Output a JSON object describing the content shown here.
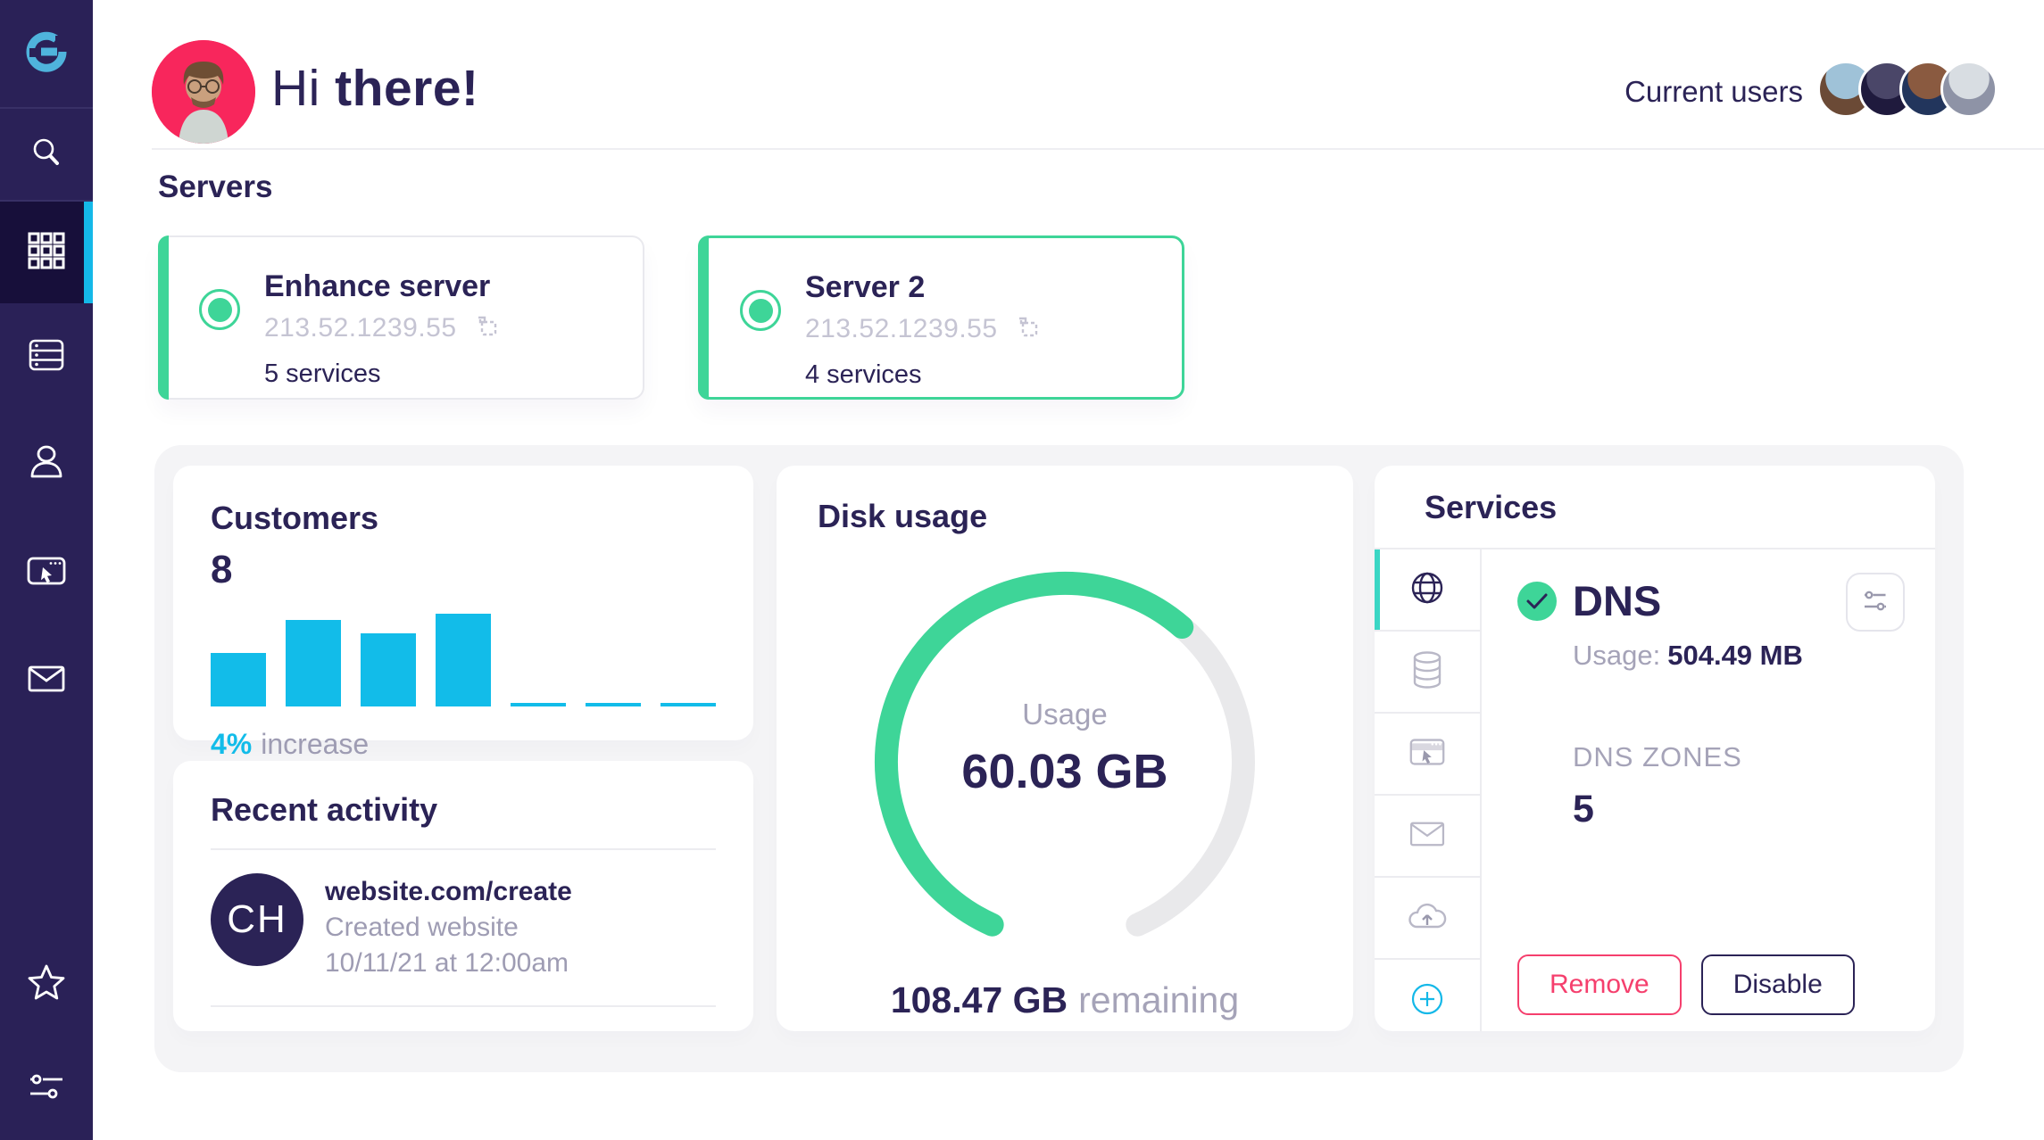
{
  "app": {
    "name": "Enhance hosting admin dashboard"
  },
  "colors": {
    "navy": "#2B2356",
    "sidebar": "#2A2157",
    "sidebar_active": "#170F3A",
    "cyan": "#12BCE9",
    "green": "#3ED598",
    "teal_tab_bar": "#3AD6C4",
    "pink": "#F53F6D",
    "avatar_crimson": "#F8265C",
    "gray_text": "#9E9CB3",
    "gray_light": "#C5C4D3",
    "panel_gray": "#F4F4F6"
  },
  "sidebar": {
    "logo_icon": "enhance-logo",
    "items": [
      {
        "icon": "search-icon",
        "active": false
      },
      {
        "icon": "app-grid-icon",
        "active": true
      },
      {
        "icon": "server-stack-icon",
        "active": false
      },
      {
        "icon": "person-icon",
        "active": false
      },
      {
        "icon": "browser-cursor-icon",
        "active": false
      },
      {
        "icon": "envelope-icon",
        "active": false
      }
    ],
    "footer_items": [
      {
        "icon": "star-icon"
      },
      {
        "icon": "sliders-icon"
      }
    ]
  },
  "header": {
    "greeting_prefix": "Hi ",
    "greeting_emphasis": "there!",
    "current_users_label": "Current users",
    "user_avatar_colors": [
      [
        "#9fc2d8",
        "#6b4a36"
      ],
      [
        "#4a4668",
        "#1f1a3d"
      ],
      [
        "#8a5a40",
        "#22355c"
      ],
      [
        "#d8dde2",
        "#8e93a6"
      ]
    ]
  },
  "servers": {
    "heading": "Servers",
    "cards": [
      {
        "name": "Enhance server",
        "ip": "213.52.1239.55",
        "services": "5 services",
        "status": "online"
      },
      {
        "name": "Server 2",
        "ip": "213.52.1239.55",
        "services": "4 services",
        "status": "online"
      }
    ]
  },
  "customers": {
    "title": "Customers",
    "count": "8",
    "delta_value": "4%",
    "delta_label": "increase"
  },
  "recent_activity": {
    "title": "Recent activity",
    "entry": {
      "initials": "CH",
      "url": "website.com/create",
      "action": "Created website",
      "timestamp": "10/11/21 at 12:00am"
    }
  },
  "disk": {
    "title": "Disk usage",
    "center_label": "Usage",
    "center_value": "60.03 GB",
    "remaining_value": "108.47 GB",
    "remaining_label": "remaining"
  },
  "services": {
    "title": "Services",
    "tabs": [
      {
        "icon": "globe-icon",
        "active": true
      },
      {
        "icon": "database-icon",
        "active": false
      },
      {
        "icon": "browser-cursor-icon",
        "active": false
      },
      {
        "icon": "envelope-icon",
        "active": false
      },
      {
        "icon": "cloud-upload-icon",
        "active": false
      },
      {
        "icon": "add-plus-icon",
        "active": false
      }
    ],
    "detail": {
      "name": "DNS",
      "status_icon": "check-circle-icon",
      "usage_label": "Usage:",
      "usage_value": "504.49 MB",
      "zones_label": "DNS ZONES",
      "zones_value": "5"
    },
    "actions": {
      "remove_label": "Remove",
      "disable_label": "Disable"
    }
  },
  "chart_data": [
    {
      "type": "bar",
      "title": "Customers",
      "headline_value": 8,
      "annotation": "4% increase",
      "categories": [
        "",
        "",
        "",
        "",
        "",
        "",
        ""
      ],
      "values_relative_pct": [
        58,
        93,
        79,
        100,
        4,
        4,
        4
      ],
      "bar_color": "#12BCE9",
      "xlabel": "",
      "ylabel": "",
      "axes_labels_shown": false
    },
    {
      "type": "donut",
      "title": "Disk usage",
      "center_label": "Usage",
      "series": [
        {
          "name": "used",
          "value": 60.03,
          "unit": "GB",
          "color": "#3ED598"
        },
        {
          "name": "remaining",
          "value": 108.47,
          "unit": "GB",
          "color": "#E9E9EB"
        }
      ],
      "footer_annotation": "108.47 GB remaining",
      "layout": {
        "gap_deg": 48,
        "arc_start_deg": 204,
        "green_sweep_deg": 197,
        "stroke_round_caps": true
      }
    }
  ]
}
